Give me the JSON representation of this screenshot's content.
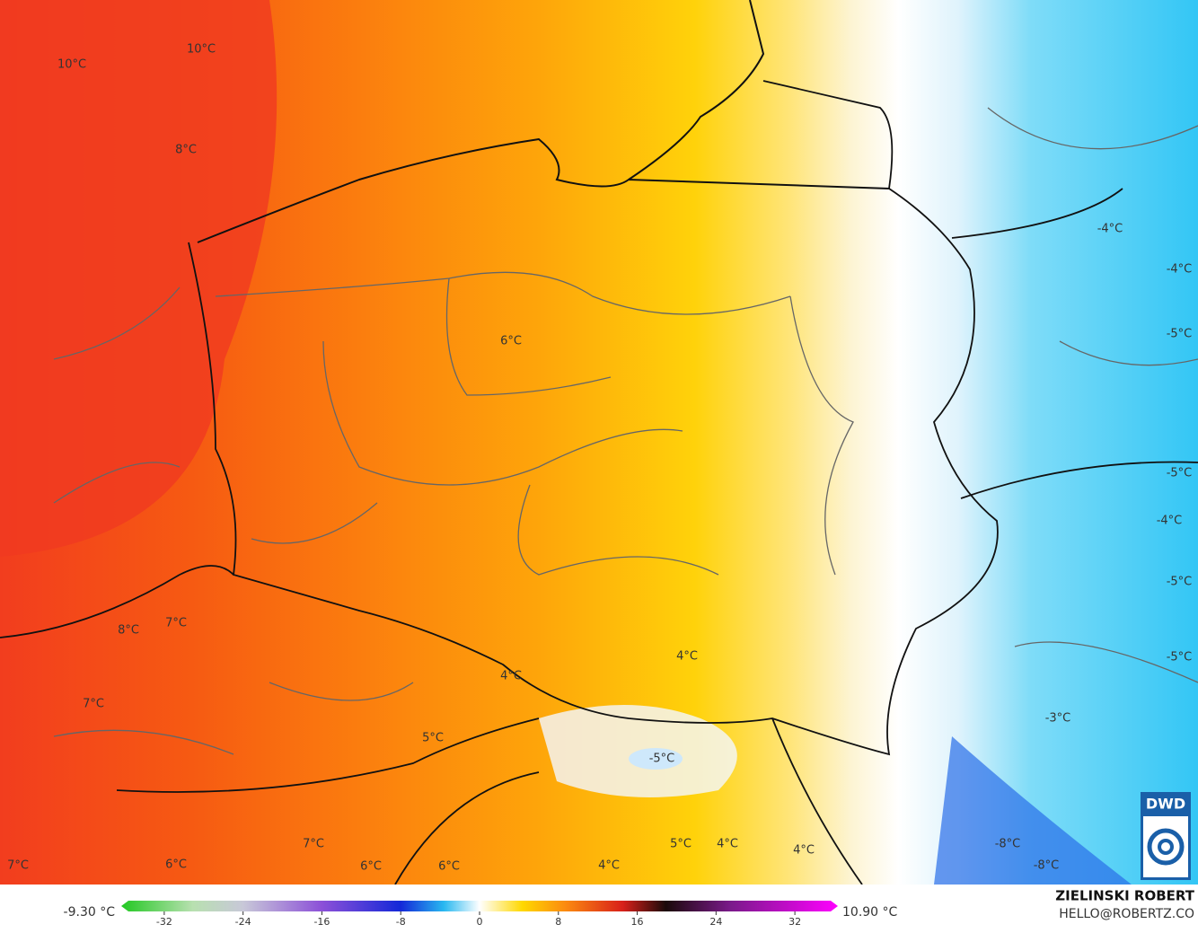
{
  "map_labels": [
    "10°C",
    "10°C",
    "8°C",
    "6°C",
    "-4°C",
    "-4°C",
    "-5°C",
    "-5°C",
    "-4°C",
    "-5°C",
    "-5°C",
    "-3°C",
    "8°C",
    "7°C",
    "7°C",
    "4°C",
    "4°C",
    "5°C",
    "-5°C",
    "-8°C",
    "-8°C",
    "5°C",
    "4°C",
    "4°C",
    "7°C",
    "6°C",
    "6°C",
    "6°C",
    "4°C",
    "7°C"
  ],
  "colorbar": {
    "min_label": "-9.30 °C",
    "max_label": "10.90 °C",
    "ticks": [
      -32,
      -24,
      -16,
      -8,
      0,
      8,
      16,
      24,
      32
    ],
    "lim": [
      -36,
      36
    ]
  },
  "logo": "DWD",
  "author": "ZIELINSKI ROBERT",
  "email": "HELLO@ROBERTZ.CO"
}
